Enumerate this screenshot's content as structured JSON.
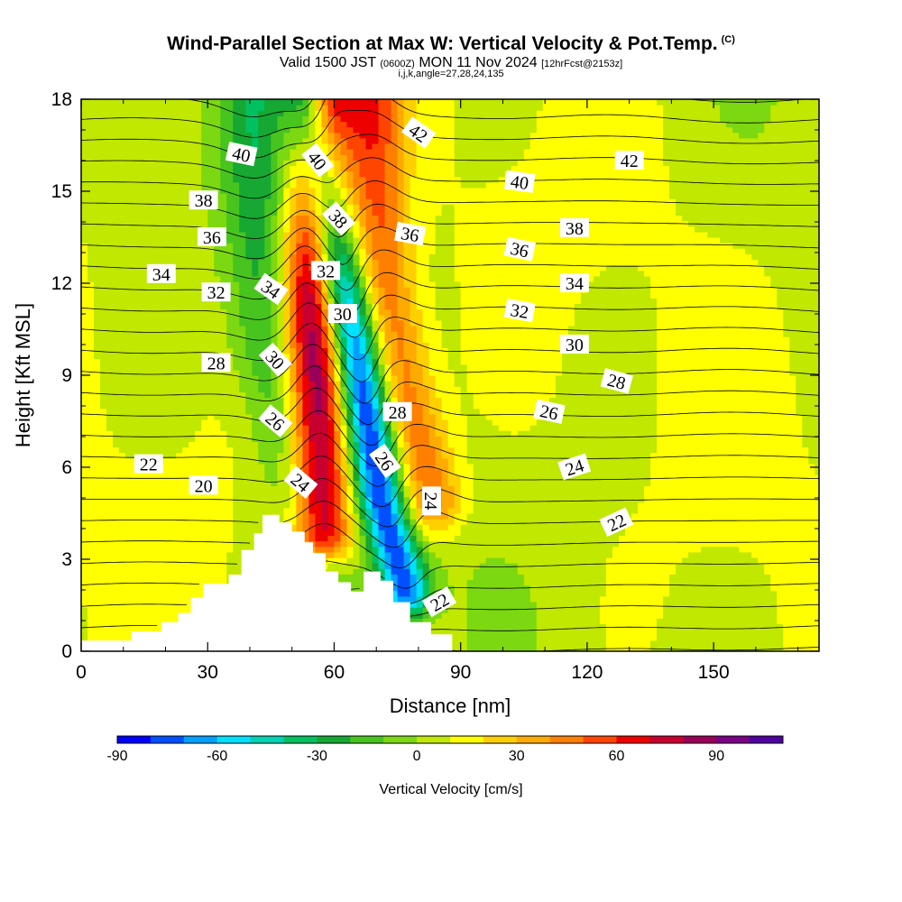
{
  "header": {
    "title": "Wind-Parallel Section at Max W: Vertical Velocity & Pot.Temp.",
    "copyright": "(C)",
    "valid_prefix": "Valid 1500 JST",
    "valid_utc": "(0600Z)",
    "valid_date": "MON 11 Nov 2024",
    "forecast": "[12hrFcst@2153z]",
    "indices": "i,j,k,angle=27,28,24,135"
  },
  "chart_data": {
    "type": "heatmap",
    "xlabel": "Distance [nm]",
    "ylabel": "Height [Kft MSL]",
    "xlim": [
      0,
      175
    ],
    "ylim": [
      0,
      18
    ],
    "x_ticks": [
      0,
      30,
      60,
      90,
      120,
      150
    ],
    "y_ticks": [
      0,
      3,
      6,
      9,
      12,
      15,
      18
    ],
    "colorbar": {
      "label": "Vertical Velocity [cm/s]",
      "min": -90,
      "max": 110,
      "step": 10,
      "ticks": [
        -90,
        -60,
        -30,
        0,
        30,
        60,
        90
      ],
      "colors": [
        "#0000ff",
        "#0050ff",
        "#00a0ff",
        "#00e0ff",
        "#00d2b4",
        "#00c060",
        "#16a832",
        "#48c41e",
        "#7cd810",
        "#c0e800",
        "#ffff00",
        "#ffd000",
        "#ffaa00",
        "#ff8000",
        "#ff4500",
        "#ee0000",
        "#c80030",
        "#9a0058",
        "#7a0088",
        "#5000a0"
      ]
    },
    "terrain": [
      [
        0,
        0.35
      ],
      [
        12,
        0.35
      ],
      [
        12,
        0.65
      ],
      [
        19,
        0.65
      ],
      [
        19,
        0.95
      ],
      [
        23,
        0.95
      ],
      [
        23,
        1.25
      ],
      [
        26,
        1.25
      ],
      [
        26,
        1.75
      ],
      [
        29,
        1.75
      ],
      [
        29,
        2.2
      ],
      [
        35,
        2.2
      ],
      [
        35,
        2.5
      ],
      [
        38,
        2.5
      ],
      [
        38,
        3.3
      ],
      [
        41,
        3.3
      ],
      [
        41,
        3.85
      ],
      [
        43,
        3.85
      ],
      [
        43,
        4.45
      ],
      [
        47,
        4.45
      ],
      [
        47,
        4.2
      ],
      [
        50,
        4.2
      ],
      [
        50,
        3.9
      ],
      [
        53,
        3.9
      ],
      [
        53,
        3.55
      ],
      [
        55,
        3.55
      ],
      [
        55,
        3.2
      ],
      [
        58,
        3.2
      ],
      [
        58,
        2.6
      ],
      [
        61,
        2.6
      ],
      [
        61,
        2.25
      ],
      [
        64,
        2.25
      ],
      [
        64,
        1.95
      ],
      [
        67,
        1.95
      ],
      [
        67,
        2.6
      ],
      [
        71,
        2.6
      ],
      [
        71,
        2.3
      ],
      [
        74,
        2.3
      ],
      [
        74,
        1.6
      ],
      [
        78,
        1.6
      ],
      [
        78,
        0.95
      ],
      [
        83,
        0.95
      ],
      [
        83,
        0.55
      ],
      [
        88,
        0.55
      ],
      [
        88,
        0
      ]
    ],
    "features": [
      {
        "kind": "updraft",
        "w_max": 90,
        "path": [
          [
            57,
            4
          ],
          [
            56,
            8
          ],
          [
            55,
            12
          ],
          [
            56,
            15
          ],
          [
            57,
            18
          ]
        ],
        "width_nm": 5
      },
      {
        "kind": "updraft",
        "w_max": 45,
        "path": [
          [
            83,
            5
          ],
          [
            76,
            9
          ],
          [
            72,
            12
          ],
          [
            70,
            15
          ],
          [
            69,
            18
          ]
        ],
        "width_nm": 5
      },
      {
        "kind": "downdraft",
        "w_min": -85,
        "path": [
          [
            77,
            2
          ],
          [
            71,
            5
          ],
          [
            66,
            9
          ],
          [
            60,
            13
          ],
          [
            54,
            18
          ]
        ],
        "width_nm": 4
      },
      {
        "kind": "downdraft",
        "w_min": -30,
        "path": [
          [
            58,
            2
          ],
          [
            51,
            6
          ],
          [
            44,
            10
          ],
          [
            42,
            14
          ],
          [
            41,
            18
          ]
        ],
        "width_nm": 6
      }
    ],
    "theta_labels": [
      {
        "text": "40",
        "x": 38,
        "y": 16.2,
        "rot": 12
      },
      {
        "text": "38",
        "x": 29,
        "y": 14.7,
        "rot": 0
      },
      {
        "text": "36",
        "x": 31,
        "y": 13.5,
        "rot": 0
      },
      {
        "text": "34",
        "x": 19,
        "y": 12.3,
        "rot": 0
      },
      {
        "text": "32",
        "x": 32,
        "y": 11.7,
        "rot": 0
      },
      {
        "text": "28",
        "x": 32,
        "y": 9.4,
        "rot": 0
      },
      {
        "text": "22",
        "x": 16,
        "y": 6.1,
        "rot": 0
      },
      {
        "text": "20",
        "x": 29,
        "y": 5.4,
        "rot": 0
      },
      {
        "text": "34",
        "x": 45,
        "y": 11.8,
        "rot": 35
      },
      {
        "text": "30",
        "x": 46,
        "y": 9.5,
        "rot": 48
      },
      {
        "text": "26",
        "x": 46,
        "y": 7.5,
        "rot": 40
      },
      {
        "text": "24",
        "x": 52,
        "y": 5.5,
        "rot": 40
      },
      {
        "text": "40",
        "x": 56,
        "y": 16.0,
        "rot": 52
      },
      {
        "text": "38",
        "x": 61,
        "y": 14.1,
        "rot": 48
      },
      {
        "text": "32",
        "x": 58,
        "y": 12.4,
        "rot": 0
      },
      {
        "text": "30",
        "x": 62,
        "y": 11.0,
        "rot": 0
      },
      {
        "text": "26",
        "x": 72,
        "y": 6.2,
        "rot": 55
      },
      {
        "text": "28",
        "x": 75,
        "y": 7.8,
        "rot": 0
      },
      {
        "text": "24",
        "x": 83,
        "y": 4.9,
        "rot": 90
      },
      {
        "text": "22",
        "x": 85,
        "y": 1.6,
        "rot": -30
      },
      {
        "text": "42",
        "x": 80,
        "y": 16.9,
        "rot": 35
      },
      {
        "text": "36",
        "x": 78,
        "y": 13.6,
        "rot": 10
      },
      {
        "text": "42",
        "x": 130,
        "y": 16.0,
        "rot": 0
      },
      {
        "text": "40",
        "x": 104,
        "y": 15.3,
        "rot": 8
      },
      {
        "text": "38",
        "x": 117,
        "y": 13.8,
        "rot": 0
      },
      {
        "text": "36",
        "x": 104,
        "y": 13.1,
        "rot": 12
      },
      {
        "text": "34",
        "x": 117,
        "y": 12.0,
        "rot": 0
      },
      {
        "text": "32",
        "x": 104,
        "y": 11.1,
        "rot": 10
      },
      {
        "text": "30",
        "x": 117,
        "y": 10.0,
        "rot": 0
      },
      {
        "text": "28",
        "x": 127,
        "y": 8.8,
        "rot": 15
      },
      {
        "text": "26",
        "x": 111,
        "y": 7.8,
        "rot": 12
      },
      {
        "text": "24",
        "x": 117,
        "y": 6.0,
        "rot": -18
      },
      {
        "text": "22",
        "x": 127,
        "y": 4.2,
        "rot": -25
      }
    ]
  }
}
